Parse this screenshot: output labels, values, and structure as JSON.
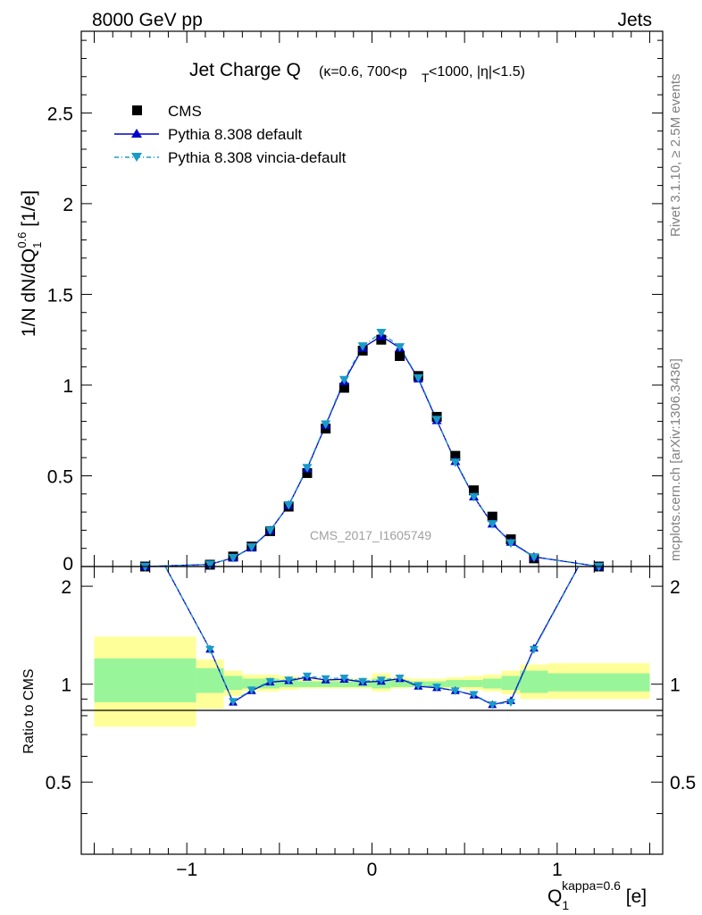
{
  "header": {
    "left": "8000 GeV pp",
    "right": "Jets"
  },
  "side": {
    "rivet": "Rivet 3.1.10, ≥ 2.5M events",
    "mcplots": "mcplots.cern.ch [arXiv:1306.3436]"
  },
  "chart_data": {
    "type": "line",
    "title": {
      "main": "Jet Charge Q",
      "kappa": "(κ=0.6, 700<p",
      "pt_sub": "T",
      "rest": "<1000, |η|<1.5)"
    },
    "watermark": "CMS_2017_I1605749",
    "ylabel": {
      "main": "1/N dN/dQ",
      "sub": "1",
      "sup": "0.6",
      "unit": " [1/e]"
    },
    "xlabel": {
      "main": "Q",
      "sub": "1",
      "sup": "kappa=0.6",
      "unit": " [e]"
    },
    "ratio_label": "Ratio to CMS",
    "xlim": [
      -1.57,
      1.57
    ],
    "ylim": [
      0,
      2.95
    ],
    "ratio_ylim": [
      0.3,
      2.3
    ],
    "x_ticks": [
      "−1",
      "0",
      "1"
    ],
    "y_ticks": [
      "0",
      "0.5",
      "1",
      "1.5",
      "2",
      "2.5"
    ],
    "ratio_ticks": [
      "0.5",
      "1",
      "2"
    ],
    "legend": [
      {
        "label": "CMS",
        "marker": "square"
      },
      {
        "label": "Pythia 8.308 default",
        "marker": "triangle-up"
      },
      {
        "label": "Pythia 8.308 vincia-default",
        "marker": "triangle-down"
      }
    ],
    "colors": {
      "cms": "#000000",
      "default": "#0000cc",
      "vincia": "#1a9ac8",
      "band_inner": "#99f599",
      "band_outer": "#ffff99"
    },
    "x": [
      -1.225,
      -0.875,
      -0.75,
      -0.65,
      -0.55,
      -0.45,
      -0.35,
      -0.25,
      -0.15,
      -0.05,
      0.05,
      0.15,
      0.25,
      0.35,
      0.45,
      0.55,
      0.65,
      0.75,
      0.875,
      1.225
    ],
    "series": [
      {
        "name": "CMS",
        "values": [
          0.0,
          0.01,
          0.055,
          0.11,
          0.195,
          0.33,
          0.515,
          0.76,
          0.985,
          1.19,
          1.25,
          1.16,
          1.05,
          0.825,
          0.61,
          0.42,
          0.275,
          0.15,
          0.045,
          0.0
        ]
      },
      {
        "name": "Pythia 8.308 default",
        "values": [
          0.0,
          0.012,
          0.048,
          0.105,
          0.198,
          0.338,
          0.54,
          0.78,
          1.02,
          1.205,
          1.27,
          1.205,
          1.035,
          0.805,
          0.58,
          0.385,
          0.235,
          0.135,
          0.053,
          0.0
        ]
      },
      {
        "name": "Pythia 8.308 vincia-default",
        "values": [
          0.0,
          0.012,
          0.049,
          0.108,
          0.2,
          0.34,
          0.545,
          0.785,
          1.03,
          1.215,
          1.29,
          1.21,
          1.04,
          0.81,
          0.575,
          0.385,
          0.235,
          0.13,
          0.052,
          0.0
        ]
      }
    ],
    "ratio": [
      {
        "name": "Pythia 8.308 default",
        "values": [
          3.0,
          1.28,
          0.88,
          0.955,
          1.015,
          1.025,
          1.05,
          1.03,
          1.035,
          1.015,
          1.02,
          1.04,
          0.985,
          0.975,
          0.955,
          0.925,
          0.865,
          0.89,
          1.29,
          3.0
        ]
      },
      {
        "name": "Pythia 8.308 vincia-default",
        "values": [
          3.0,
          1.28,
          0.885,
          0.96,
          1.02,
          1.03,
          1.06,
          1.04,
          1.045,
          1.02,
          1.03,
          1.045,
          0.99,
          0.98,
          0.955,
          0.93,
          0.865,
          0.88,
          1.28,
          3.0
        ]
      }
    ],
    "band_bins": [
      {
        "lo": -1.5,
        "hi": -0.95,
        "inner": [
          0.88,
          1.2
        ],
        "outer": [
          0.74,
          1.4
        ]
      },
      {
        "lo": -0.95,
        "hi": -0.8,
        "inner": [
          0.94,
          1.12
        ],
        "outer": [
          0.84,
          1.19
        ]
      },
      {
        "lo": -0.8,
        "hi": -0.7,
        "inner": [
          0.96,
          1.06
        ],
        "outer": [
          0.92,
          1.1
        ]
      },
      {
        "lo": -0.7,
        "hi": -0.6,
        "inner": [
          0.97,
          1.04
        ],
        "outer": [
          0.95,
          1.07
        ]
      },
      {
        "lo": -0.6,
        "hi": -0.5,
        "inner": [
          0.97,
          1.04
        ],
        "outer": [
          0.95,
          1.07
        ]
      },
      {
        "lo": -0.5,
        "hi": -0.4,
        "inner": [
          0.98,
          1.03
        ],
        "outer": [
          0.96,
          1.06
        ]
      },
      {
        "lo": -0.4,
        "hi": -0.3,
        "inner": [
          0.98,
          1.02
        ],
        "outer": [
          0.97,
          1.05
        ]
      },
      {
        "lo": -0.3,
        "hi": -0.2,
        "inner": [
          0.98,
          1.02
        ],
        "outer": [
          0.97,
          1.04
        ]
      },
      {
        "lo": -0.2,
        "hi": -0.1,
        "inner": [
          0.98,
          1.02
        ],
        "outer": [
          0.97,
          1.04
        ]
      },
      {
        "lo": -0.1,
        "hi": 0.0,
        "inner": [
          0.98,
          1.02
        ],
        "outer": [
          0.97,
          1.04
        ]
      },
      {
        "lo": 0.0,
        "hi": 0.1,
        "inner": [
          0.97,
          1.04
        ],
        "outer": [
          0.95,
          1.08
        ]
      },
      {
        "lo": 0.1,
        "hi": 0.2,
        "inner": [
          0.98,
          1.03
        ],
        "outer": [
          0.97,
          1.05
        ]
      },
      {
        "lo": 0.2,
        "hi": 0.3,
        "inner": [
          0.98,
          1.02
        ],
        "outer": [
          0.98,
          1.04
        ]
      },
      {
        "lo": 0.3,
        "hi": 0.4,
        "inner": [
          0.98,
          1.02
        ],
        "outer": [
          0.97,
          1.04
        ]
      },
      {
        "lo": 0.4,
        "hi": 0.5,
        "inner": [
          0.98,
          1.03
        ],
        "outer": [
          0.97,
          1.05
        ]
      },
      {
        "lo": 0.5,
        "hi": 0.6,
        "inner": [
          0.98,
          1.03
        ],
        "outer": [
          0.96,
          1.06
        ]
      },
      {
        "lo": 0.6,
        "hi": 0.7,
        "inner": [
          0.97,
          1.04
        ],
        "outer": [
          0.95,
          1.07
        ]
      },
      {
        "lo": 0.7,
        "hi": 0.8,
        "inner": [
          0.96,
          1.06
        ],
        "outer": [
          0.93,
          1.1
        ]
      },
      {
        "lo": 0.8,
        "hi": 0.95,
        "inner": [
          0.94,
          1.1
        ],
        "outer": [
          0.9,
          1.15
        ]
      },
      {
        "lo": 0.95,
        "hi": 1.5,
        "inner": [
          0.95,
          1.08
        ],
        "outer": [
          0.9,
          1.16
        ]
      }
    ]
  }
}
